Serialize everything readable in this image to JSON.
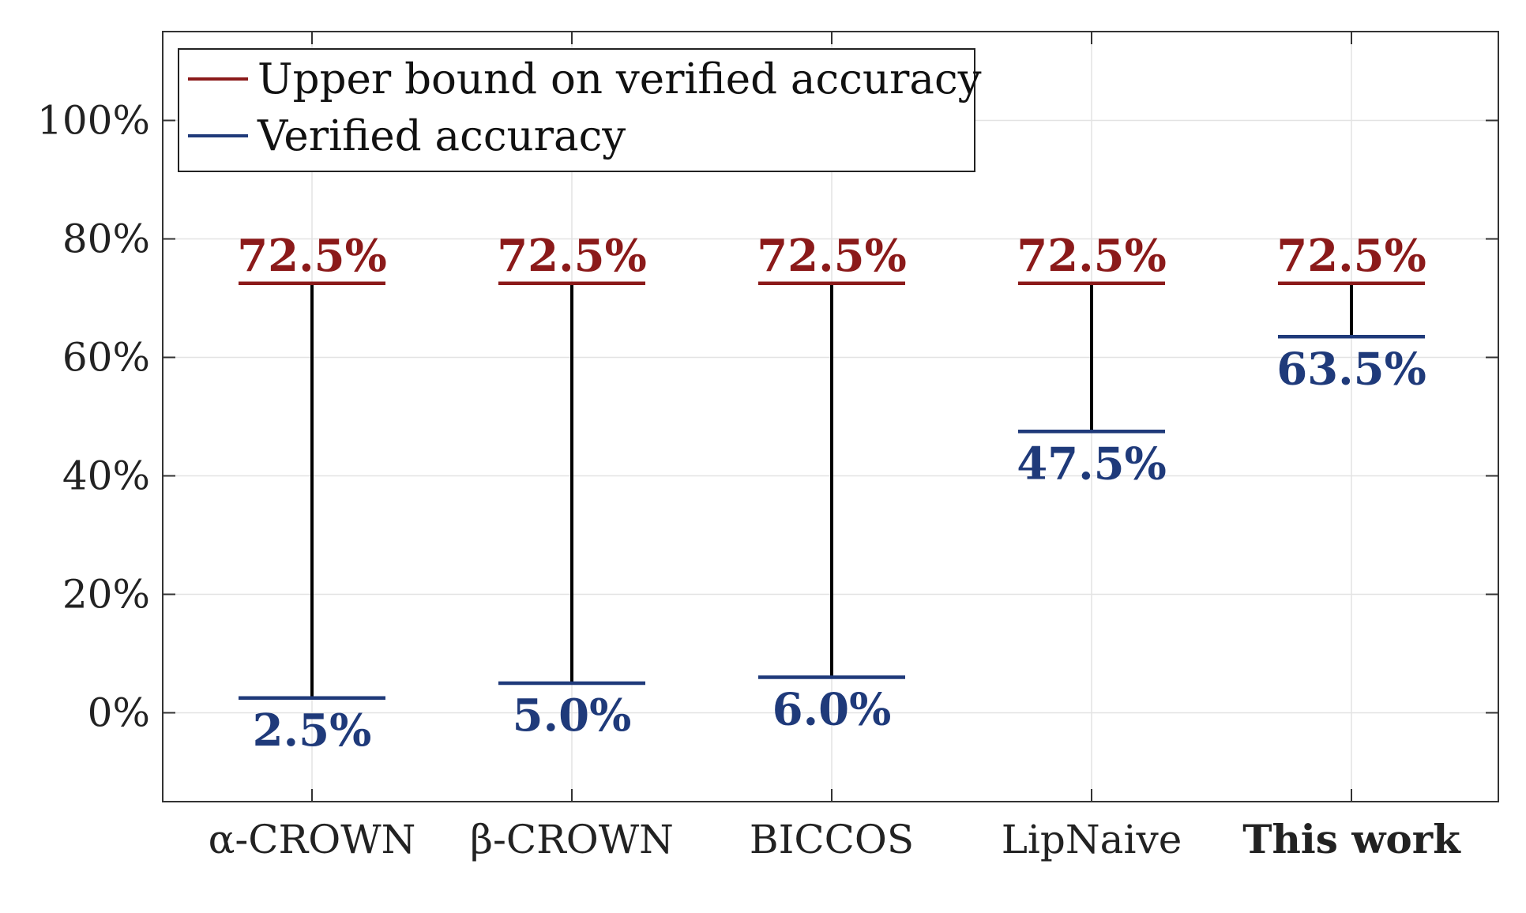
{
  "chart_data": {
    "type": "errorbar-range",
    "categories": [
      "α-CROWN",
      "β-CROWN",
      "BICCOS",
      "LipNaive",
      "This work"
    ],
    "category_bold": [
      false,
      false,
      false,
      false,
      true
    ],
    "series": [
      {
        "name": "Upper bound on verified accuracy",
        "color": "#8b1a1a",
        "values": [
          72.5,
          72.5,
          72.5,
          72.5,
          72.5
        ],
        "labels": [
          "72.5%",
          "72.5%",
          "72.5%",
          "72.5%",
          "72.5%"
        ]
      },
      {
        "name": "Verified accuracy",
        "color": "#1f3a7a",
        "values": [
          2.5,
          5.0,
          6.0,
          47.5,
          63.5
        ],
        "labels": [
          "2.5%",
          "5.0%",
          "6.0%",
          "47.5%",
          "63.5%"
        ]
      }
    ],
    "connector_color": "#000000",
    "ylim": [
      -15,
      115
    ],
    "yticks": [
      0,
      20,
      40,
      60,
      80,
      100
    ],
    "ytick_labels": [
      "0%",
      "20%",
      "40%",
      "60%",
      "80%",
      "100%"
    ],
    "grid": true,
    "legend_position": "top-left"
  }
}
